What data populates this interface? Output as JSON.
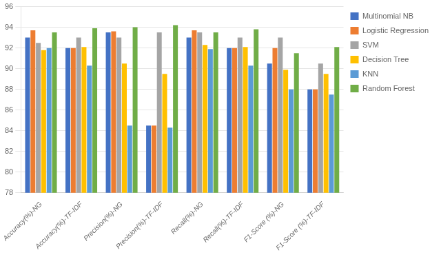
{
  "chart_data": {
    "type": "bar",
    "categories": [
      "Accuracy(%)-NG",
      "Accuracy(%)-TF-IDF",
      "Precision(%)-NG",
      "Precision(%)-TF-IDF",
      "Recall(%)-NG",
      "Recall(%)-TF-IDF",
      "F1-Score (%)-NG",
      "F1-Score (%)-TF-IDF"
    ],
    "series": [
      {
        "name": "Multinomial NB",
        "color": "#4472c4",
        "values": [
          93.0,
          92.0,
          93.5,
          84.5,
          93.0,
          92.0,
          90.5,
          88.0
        ]
      },
      {
        "name": "Logistic Regression",
        "color": "#ed7d31",
        "values": [
          93.7,
          92.0,
          93.6,
          84.5,
          93.7,
          92.0,
          92.0,
          88.0
        ]
      },
      {
        "name": "SVM",
        "color": "#a5a5a5",
        "values": [
          92.5,
          93.0,
          93.0,
          93.5,
          93.5,
          93.0,
          93.0,
          90.5
        ]
      },
      {
        "name": "Decision Tree",
        "color": "#ffc000",
        "values": [
          91.8,
          92.1,
          90.5,
          89.5,
          92.3,
          92.1,
          89.9,
          89.5
        ]
      },
      {
        "name": "KNN",
        "color": "#5b9bd5",
        "values": [
          92.0,
          90.3,
          84.5,
          84.3,
          91.9,
          90.3,
          88.0,
          87.5
        ]
      },
      {
        "name": "Random Forest",
        "color": "#70ad47",
        "values": [
          93.5,
          93.9,
          94.0,
          94.2,
          93.5,
          93.8,
          91.5,
          92.1
        ]
      }
    ],
    "ylim": [
      78,
      96
    ],
    "yticks": [
      78,
      80,
      82,
      84,
      86,
      88,
      90,
      92,
      94,
      96
    ],
    "grid": true,
    "legend": "right"
  }
}
